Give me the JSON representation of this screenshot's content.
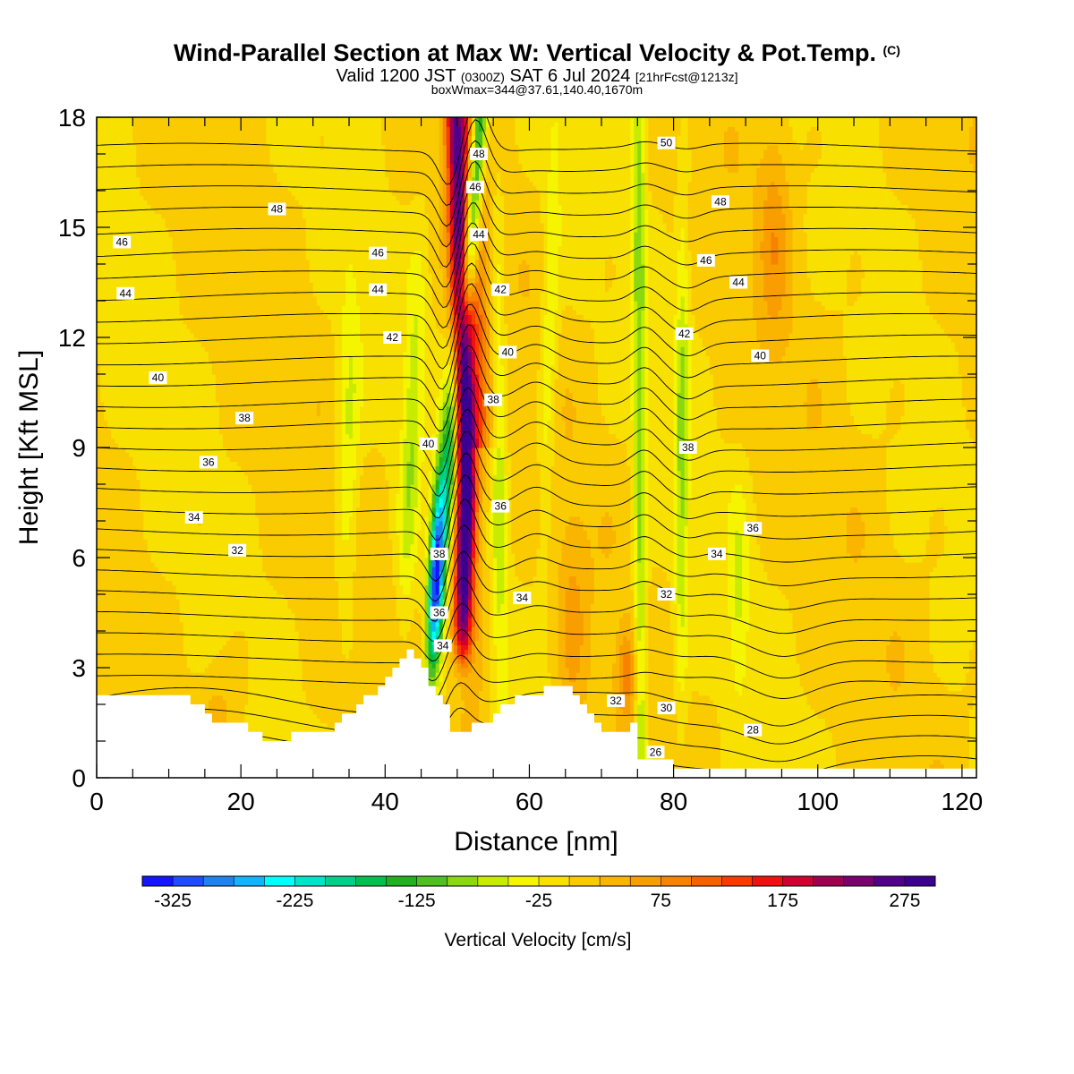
{
  "header": {
    "title_main": "Wind-Parallel Section at Max W: Vertical Velocity & Pot.Temp.",
    "title_mark": "(C)",
    "valid_prefix": "Valid 1200 JST",
    "valid_z": "(0300Z)",
    "valid_date": "SAT 6 Jul 2024",
    "forecast": "[21hrFcst@1213z]",
    "info": "boxWmax=344@37.61,140.40,1670m"
  },
  "chart_data": {
    "type": "heatmap",
    "title": "Wind-Parallel Section at Max W: Vertical Velocity & Pot.Temp.",
    "xlabel": "Distance [nm]",
    "ylabel": "Height [Kft MSL]",
    "xlim": [
      0,
      122
    ],
    "ylim": [
      0,
      18
    ],
    "x_ticks": [
      0,
      20,
      40,
      60,
      80,
      100,
      120
    ],
    "y_ticks": [
      0,
      3,
      6,
      9,
      12,
      15,
      18
    ],
    "field": "Vertical Velocity",
    "colorbar": {
      "label": "Vertical Velocity [cm/s]",
      "tick_labels": [
        "-325",
        "-225",
        "-125",
        "-25",
        "75",
        "175",
        "275"
      ],
      "tick_values": [
        -325,
        -225,
        -125,
        -25,
        75,
        175,
        275
      ],
      "min": -350,
      "max": 300,
      "step": 25,
      "colors": [
        "#1414ff",
        "#1f4cff",
        "#1e83f0",
        "#12b4ff",
        "#00ffff",
        "#00e4c8",
        "#00d08a",
        "#00c050",
        "#20b020",
        "#50c020",
        "#8ad810",
        "#c8ec00",
        "#f5f500",
        "#f8e000",
        "#f9cb00",
        "#f9b500",
        "#f99e00",
        "#f88300",
        "#f86100",
        "#f83c00",
        "#f01010",
        "#d00030",
        "#a00050",
        "#7a0070",
        "#52008c",
        "#3c0090"
      ]
    },
    "contours": {
      "field": "Pot.Temp.",
      "labels": [
        "26",
        "28",
        "30",
        "32",
        "34",
        "36",
        "38",
        "40",
        "42",
        "44",
        "46",
        "48",
        "50"
      ]
    },
    "features": [
      {
        "name": "updraft core",
        "x": 51,
        "y_range": [
          2.5,
          18
        ],
        "w_max": 344
      },
      {
        "name": "downdraft core",
        "x": 47,
        "y_range": [
          3.2,
          10
        ],
        "w_min": -325
      },
      {
        "name": "terrain",
        "x_range": [
          0,
          122
        ],
        "height_max": 3.5
      }
    ]
  }
}
